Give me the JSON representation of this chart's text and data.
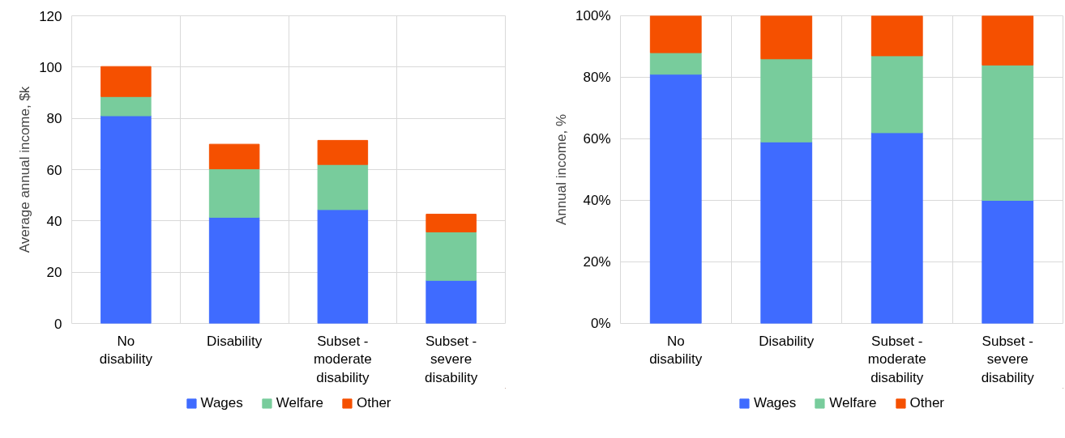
{
  "chart_data": [
    {
      "type": "bar",
      "stacked": true,
      "ylabel": "Average annual income, $k",
      "categories": [
        "No disability",
        "Disability",
        "Subset - moderate disability",
        "Subset - severe disability"
      ],
      "series": [
        {
          "name": "Wages",
          "color": "#3f6bff",
          "values": [
            81,
            41.4,
            44.4,
            16.8
          ]
        },
        {
          "name": "Welfare",
          "color": "#78cc9c",
          "values": [
            7.5,
            18.9,
            17.6,
            18.9
          ]
        },
        {
          "name": "Other",
          "color": "#f55000",
          "values": [
            11.7,
            9.6,
            9.4,
            6.9
          ]
        }
      ],
      "ylim": [
        0,
        120
      ],
      "yticks": [
        0,
        20,
        40,
        60,
        80,
        100,
        120
      ],
      "grid": true,
      "legend": "bottom"
    },
    {
      "type": "bar",
      "stacked": true,
      "ylabel": "Annual income, %",
      "categories": [
        "No disability",
        "Disability",
        "Subset - moderate disability",
        "Subset - severe disability"
      ],
      "series": [
        {
          "name": "Wages",
          "color": "#3f6bff",
          "values": [
            81,
            59,
            62,
            40
          ]
        },
        {
          "name": "Welfare",
          "color": "#78cc9c",
          "values": [
            7,
            27,
            25,
            44
          ]
        },
        {
          "name": "Other",
          "color": "#f55000",
          "values": [
            12,
            14,
            13,
            16
          ]
        }
      ],
      "ylim": [
        0,
        100
      ],
      "yticks": [
        {
          "value": 0,
          "label": "0%"
        },
        {
          "value": 20,
          "label": "20%"
        },
        {
          "value": 40,
          "label": "40%"
        },
        {
          "value": 60,
          "label": "60%"
        },
        {
          "value": 80,
          "label": "80%"
        },
        {
          "value": 100,
          "label": "100%"
        }
      ],
      "grid": true,
      "legend": "bottom"
    }
  ]
}
